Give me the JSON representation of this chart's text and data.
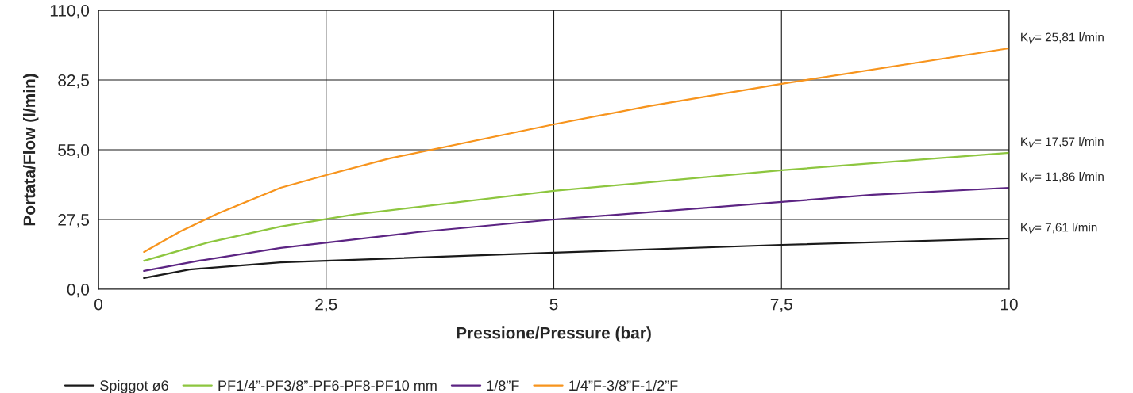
{
  "chart_data": {
    "type": "line",
    "xlabel": "Pressione/Pressure (bar)",
    "ylabel": "Portata/Flow (l/min)",
    "xlim": [
      0,
      10
    ],
    "ylim": [
      0,
      110
    ],
    "xticks": [
      0,
      {
        "value": 2.5,
        "label": "2,5"
      },
      5,
      {
        "value": 7.5,
        "label": "7,5"
      },
      10
    ],
    "yticks": [
      {
        "value": 0,
        "label": "0,0"
      },
      {
        "value": 27.5,
        "label": "27,5"
      },
      {
        "value": 55,
        "label": "55,0"
      },
      {
        "value": 82.5,
        "label": "82,5"
      },
      {
        "value": 110,
        "label": "110,0"
      }
    ],
    "grid": true,
    "legend": "bottom",
    "line_style": "solid",
    "marker": "none",
    "series": [
      {
        "name": "Spiggot ø6",
        "color": "#1a1a1a",
        "x": [
          0.5,
          1.0,
          2.0,
          5.0,
          7.5,
          10.0
        ],
        "values": [
          4.4,
          7.8,
          10.6,
          14.4,
          17.5,
          20.0
        ]
      },
      {
        "name": "PF1/4”-PF3/8”-PF6-PF8-PF10 mm",
        "color": "#8dc63f",
        "x": [
          0.5,
          1.2,
          2.0,
          2.8,
          5.0,
          7.5,
          10.0
        ],
        "values": [
          11.2,
          18.4,
          24.7,
          29.4,
          38.8,
          46.9,
          53.8
        ]
      },
      {
        "name": "1/8”F",
        "color": "#5c2483",
        "x": [
          0.5,
          1.1,
          2.0,
          3.5,
          5.0,
          7.5,
          8.5,
          10.0
        ],
        "values": [
          7.2,
          11.2,
          16.3,
          22.5,
          27.5,
          34.4,
          37.2,
          40.0
        ]
      },
      {
        "name": "1/4”F-3/8”F-1/2”F",
        "color": "#f7941d",
        "x": [
          0.5,
          0.9,
          1.3,
          2.0,
          2.5,
          3.2,
          5.0,
          6.0,
          7.5,
          10.0
        ],
        "values": [
          14.7,
          22.8,
          29.7,
          40.0,
          45.0,
          51.6,
          65.0,
          71.9,
          81.0,
          95.0
        ]
      }
    ],
    "annotations": [
      "K$_{V}$= 25,81 l/min",
      "K$_{V}$= 17,57 l/min",
      "K$_{V}$= 11,86 l/min",
      "K$_{V}$= 7,61 l/min"
    ]
  }
}
